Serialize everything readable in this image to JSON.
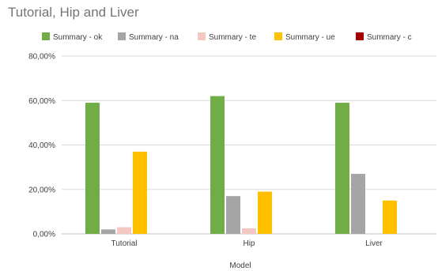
{
  "chart_data": {
    "type": "bar",
    "title": "Tutorial, Hip and Liver",
    "xlabel": "Model",
    "ylabel": "",
    "categories": [
      "Tutorial",
      "Hip",
      "Liver"
    ],
    "series": [
      {
        "name": "Summary - ok",
        "color": "#70ad47",
        "values": [
          59,
          62,
          59
        ]
      },
      {
        "name": "Summary - na",
        "color": "#a5a5a5",
        "values": [
          2,
          17,
          27
        ]
      },
      {
        "name": "Summary - te",
        "color": "#f4c7c3",
        "values": [
          3,
          2.5,
          0
        ]
      },
      {
        "name": "Summary - ue",
        "color": "#ffc000",
        "values": [
          37,
          19,
          15
        ]
      },
      {
        "name": "Summary - c",
        "color": "#a50000",
        "values": [
          0,
          0,
          0
        ]
      }
    ],
    "ylim": [
      0,
      80
    ],
    "yticks": [
      0,
      20,
      40,
      60,
      80
    ],
    "ytick_labels": [
      "0,00%",
      "20,00%",
      "40,00%",
      "60,00%",
      "80,00%"
    ],
    "grid": true,
    "legend_position": "top"
  }
}
